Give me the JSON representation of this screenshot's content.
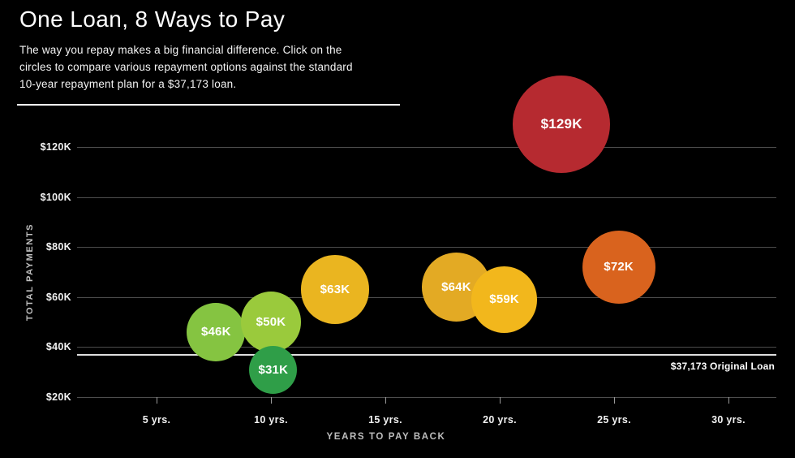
{
  "header": {
    "title": "One Loan, 8 Ways to Pay",
    "subtitle_lines": [
      "The way you repay makes a big financial difference. Click on the",
      "circles to compare various repayment options against the standard",
      "10-year repayment plan for a $37,173 loan."
    ]
  },
  "chart_data": {
    "type": "scatter",
    "title": "One Loan, 8 Ways to Pay",
    "xlabel": "YEARS TO PAY BACK",
    "ylabel": "TOTAL PAYMENTS",
    "xlim": [
      2.5,
      32
    ],
    "ylim": [
      15,
      135
    ],
    "grid": "horizontal",
    "x_ticks": [
      {
        "label": "5 yrs.",
        "value": 5
      },
      {
        "label": "10 yrs.",
        "value": 10
      },
      {
        "label": "15 yrs.",
        "value": 15
      },
      {
        "label": "20 yrs.",
        "value": 20
      },
      {
        "label": "25 yrs.",
        "value": 25
      },
      {
        "label": "30 yrs.",
        "value": 30
      }
    ],
    "y_ticks": [
      {
        "label": "$120K",
        "value": 120
      },
      {
        "label": "$100K",
        "value": 100
      },
      {
        "label": "$80K",
        "value": 80
      },
      {
        "label": "$60K",
        "value": 60
      },
      {
        "label": "$40K",
        "value": 40
      },
      {
        "label": "$20K",
        "value": 20
      }
    ],
    "reference_line": {
      "label": "$37,173 Original Loan",
      "value": 37.173
    },
    "bubbles": [
      {
        "label": "$46K",
        "total_payments_k": 46,
        "years": 7.6,
        "color": "#85c441"
      },
      {
        "label": "$50K",
        "total_payments_k": 50,
        "years": 10.0,
        "color": "#9aca3c"
      },
      {
        "label": "$31K",
        "total_payments_k": 31,
        "years": 10.1,
        "color": "#2f9e48"
      },
      {
        "label": "$63K",
        "total_payments_k": 63,
        "years": 12.8,
        "color": "#eab520"
      },
      {
        "label": "$64K",
        "total_payments_k": 64,
        "years": 18.1,
        "color": "#e3aa24"
      },
      {
        "label": "$59K",
        "total_payments_k": 59,
        "years": 20.2,
        "color": "#f2b71c"
      },
      {
        "label": "$72K",
        "total_payments_k": 72,
        "years": 25.2,
        "color": "#d9631e"
      },
      {
        "label": "$129K",
        "total_payments_k": 129,
        "years": 22.7,
        "color": "#b62a30"
      }
    ]
  }
}
